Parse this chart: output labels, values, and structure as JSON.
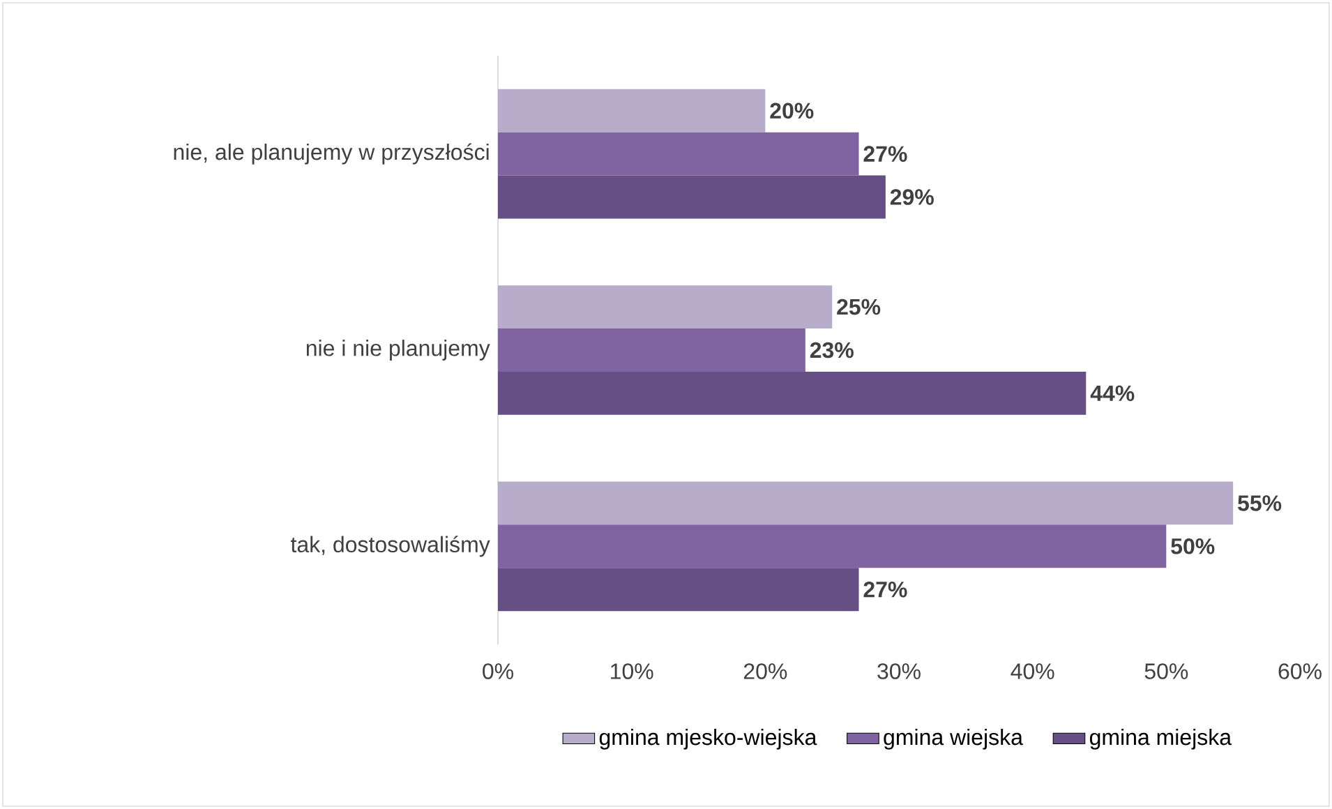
{
  "chart_data": {
    "type": "bar",
    "orientation": "horizontal",
    "categories": [
      "nie, ale planujemy w przyszłości",
      "nie i nie planujemy",
      "tak, dostosowaliśmy"
    ],
    "series": [
      {
        "name": "gmina mjesko-wiejska",
        "color": "#b7acc9",
        "values": [
          20,
          25,
          55
        ],
        "value_labels": [
          "20%",
          "25%",
          "55%"
        ]
      },
      {
        "name": "gmina wiejska",
        "color": "#8064a2",
        "values": [
          27,
          23,
          50
        ],
        "value_labels": [
          "27%",
          "23%",
          "50%"
        ]
      },
      {
        "name": "gmina miejska",
        "color": "#654f84",
        "values": [
          29,
          44,
          27
        ],
        "value_labels": [
          "29%",
          "44%",
          "27%"
        ]
      }
    ],
    "xlim": [
      0,
      60
    ],
    "xticks": [
      {
        "value": 0,
        "label": "0%"
      },
      {
        "value": 10,
        "label": "10%"
      },
      {
        "value": 20,
        "label": "20%"
      },
      {
        "value": 30,
        "label": "30%"
      },
      {
        "value": 40,
        "label": "40%"
      },
      {
        "value": 50,
        "label": "50%"
      },
      {
        "value": 60,
        "label": "60%"
      }
    ],
    "grid": false,
    "legend": "bottom"
  }
}
